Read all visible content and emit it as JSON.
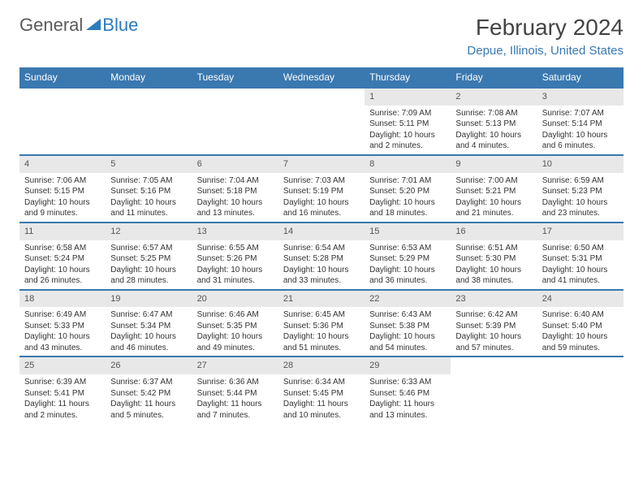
{
  "logo": {
    "general": "General",
    "blue": "Blue"
  },
  "title": "February 2024",
  "location": "Depue, Illinois, United States",
  "colors": {
    "header_bg": "#3a78b0",
    "header_text": "#ffffff",
    "daynum_bg": "#e8e8e8",
    "border": "#3a78b0",
    "location_text": "#3a78b0",
    "logo_blue": "#2b7bbf"
  },
  "fonts": {
    "title_size": 28,
    "location_size": 15,
    "weekday_size": 12,
    "daynum_size": 11,
    "body_size": 10
  },
  "weekdays": [
    "Sunday",
    "Monday",
    "Tuesday",
    "Wednesday",
    "Thursday",
    "Friday",
    "Saturday"
  ],
  "weeks": [
    [
      {
        "day": ""
      },
      {
        "day": ""
      },
      {
        "day": ""
      },
      {
        "day": ""
      },
      {
        "day": "1",
        "sunrise": "Sunrise: 7:09 AM",
        "sunset": "Sunset: 5:11 PM",
        "daylight": "Daylight: 10 hours and 2 minutes."
      },
      {
        "day": "2",
        "sunrise": "Sunrise: 7:08 AM",
        "sunset": "Sunset: 5:13 PM",
        "daylight": "Daylight: 10 hours and 4 minutes."
      },
      {
        "day": "3",
        "sunrise": "Sunrise: 7:07 AM",
        "sunset": "Sunset: 5:14 PM",
        "daylight": "Daylight: 10 hours and 6 minutes."
      }
    ],
    [
      {
        "day": "4",
        "sunrise": "Sunrise: 7:06 AM",
        "sunset": "Sunset: 5:15 PM",
        "daylight": "Daylight: 10 hours and 9 minutes."
      },
      {
        "day": "5",
        "sunrise": "Sunrise: 7:05 AM",
        "sunset": "Sunset: 5:16 PM",
        "daylight": "Daylight: 10 hours and 11 minutes."
      },
      {
        "day": "6",
        "sunrise": "Sunrise: 7:04 AM",
        "sunset": "Sunset: 5:18 PM",
        "daylight": "Daylight: 10 hours and 13 minutes."
      },
      {
        "day": "7",
        "sunrise": "Sunrise: 7:03 AM",
        "sunset": "Sunset: 5:19 PM",
        "daylight": "Daylight: 10 hours and 16 minutes."
      },
      {
        "day": "8",
        "sunrise": "Sunrise: 7:01 AM",
        "sunset": "Sunset: 5:20 PM",
        "daylight": "Daylight: 10 hours and 18 minutes."
      },
      {
        "day": "9",
        "sunrise": "Sunrise: 7:00 AM",
        "sunset": "Sunset: 5:21 PM",
        "daylight": "Daylight: 10 hours and 21 minutes."
      },
      {
        "day": "10",
        "sunrise": "Sunrise: 6:59 AM",
        "sunset": "Sunset: 5:23 PM",
        "daylight": "Daylight: 10 hours and 23 minutes."
      }
    ],
    [
      {
        "day": "11",
        "sunrise": "Sunrise: 6:58 AM",
        "sunset": "Sunset: 5:24 PM",
        "daylight": "Daylight: 10 hours and 26 minutes."
      },
      {
        "day": "12",
        "sunrise": "Sunrise: 6:57 AM",
        "sunset": "Sunset: 5:25 PM",
        "daylight": "Daylight: 10 hours and 28 minutes."
      },
      {
        "day": "13",
        "sunrise": "Sunrise: 6:55 AM",
        "sunset": "Sunset: 5:26 PM",
        "daylight": "Daylight: 10 hours and 31 minutes."
      },
      {
        "day": "14",
        "sunrise": "Sunrise: 6:54 AM",
        "sunset": "Sunset: 5:28 PM",
        "daylight": "Daylight: 10 hours and 33 minutes."
      },
      {
        "day": "15",
        "sunrise": "Sunrise: 6:53 AM",
        "sunset": "Sunset: 5:29 PM",
        "daylight": "Daylight: 10 hours and 36 minutes."
      },
      {
        "day": "16",
        "sunrise": "Sunrise: 6:51 AM",
        "sunset": "Sunset: 5:30 PM",
        "daylight": "Daylight: 10 hours and 38 minutes."
      },
      {
        "day": "17",
        "sunrise": "Sunrise: 6:50 AM",
        "sunset": "Sunset: 5:31 PM",
        "daylight": "Daylight: 10 hours and 41 minutes."
      }
    ],
    [
      {
        "day": "18",
        "sunrise": "Sunrise: 6:49 AM",
        "sunset": "Sunset: 5:33 PM",
        "daylight": "Daylight: 10 hours and 43 minutes."
      },
      {
        "day": "19",
        "sunrise": "Sunrise: 6:47 AM",
        "sunset": "Sunset: 5:34 PM",
        "daylight": "Daylight: 10 hours and 46 minutes."
      },
      {
        "day": "20",
        "sunrise": "Sunrise: 6:46 AM",
        "sunset": "Sunset: 5:35 PM",
        "daylight": "Daylight: 10 hours and 49 minutes."
      },
      {
        "day": "21",
        "sunrise": "Sunrise: 6:45 AM",
        "sunset": "Sunset: 5:36 PM",
        "daylight": "Daylight: 10 hours and 51 minutes."
      },
      {
        "day": "22",
        "sunrise": "Sunrise: 6:43 AM",
        "sunset": "Sunset: 5:38 PM",
        "daylight": "Daylight: 10 hours and 54 minutes."
      },
      {
        "day": "23",
        "sunrise": "Sunrise: 6:42 AM",
        "sunset": "Sunset: 5:39 PM",
        "daylight": "Daylight: 10 hours and 57 minutes."
      },
      {
        "day": "24",
        "sunrise": "Sunrise: 6:40 AM",
        "sunset": "Sunset: 5:40 PM",
        "daylight": "Daylight: 10 hours and 59 minutes."
      }
    ],
    [
      {
        "day": "25",
        "sunrise": "Sunrise: 6:39 AM",
        "sunset": "Sunset: 5:41 PM",
        "daylight": "Daylight: 11 hours and 2 minutes."
      },
      {
        "day": "26",
        "sunrise": "Sunrise: 6:37 AM",
        "sunset": "Sunset: 5:42 PM",
        "daylight": "Daylight: 11 hours and 5 minutes."
      },
      {
        "day": "27",
        "sunrise": "Sunrise: 6:36 AM",
        "sunset": "Sunset: 5:44 PM",
        "daylight": "Daylight: 11 hours and 7 minutes."
      },
      {
        "day": "28",
        "sunrise": "Sunrise: 6:34 AM",
        "sunset": "Sunset: 5:45 PM",
        "daylight": "Daylight: 11 hours and 10 minutes."
      },
      {
        "day": "29",
        "sunrise": "Sunrise: 6:33 AM",
        "sunset": "Sunset: 5:46 PM",
        "daylight": "Daylight: 11 hours and 13 minutes."
      },
      {
        "day": ""
      },
      {
        "day": ""
      }
    ]
  ]
}
